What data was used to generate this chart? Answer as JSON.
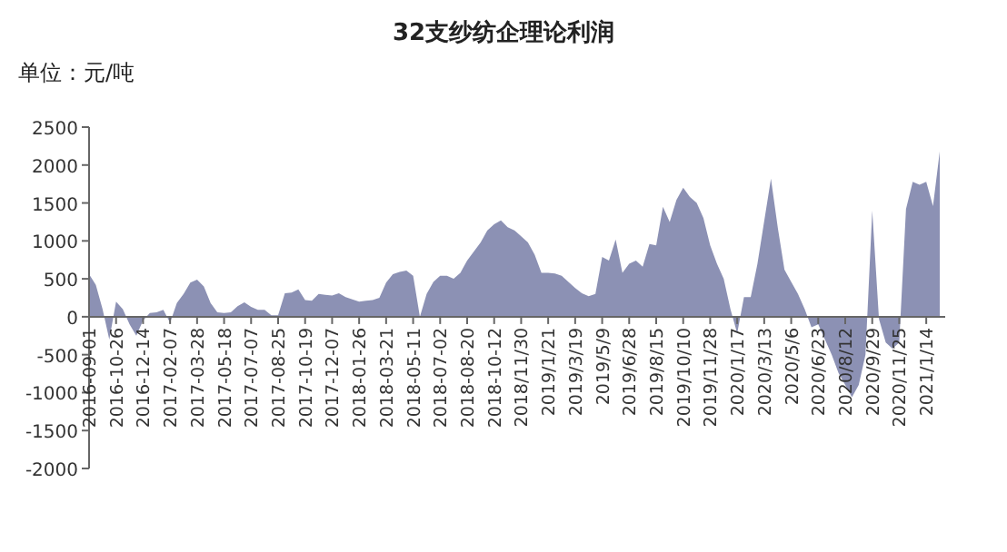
{
  "chart_data": {
    "type": "area",
    "title": "32支纱纺企理论利润",
    "annotations": [
      "单位：元/吨"
    ],
    "color": "#8c91b4",
    "categories": [
      "2016-09-01",
      null,
      null,
      null,
      "2016-10-26",
      null,
      null,
      null,
      "2016-12-14",
      null,
      null,
      null,
      "2017-02-07",
      null,
      null,
      null,
      "2017-03-28",
      null,
      null,
      null,
      "2017-05-18",
      null,
      null,
      null,
      "2017-07-07",
      null,
      null,
      null,
      "2017-08-25",
      null,
      null,
      null,
      "2017-10-19",
      null,
      null,
      null,
      "2017-12-07",
      null,
      null,
      null,
      "2018-01-26",
      null,
      null,
      null,
      "2018-03-21",
      null,
      null,
      null,
      "2018-05-11",
      null,
      null,
      null,
      "2018-07-02",
      null,
      null,
      null,
      "2018-08-20",
      null,
      null,
      null,
      "2018-10-12",
      null,
      null,
      null,
      "2018/11/30",
      null,
      null,
      null,
      "2019/1/21",
      null,
      null,
      null,
      "2019/3/19",
      null,
      null,
      null,
      "2019/5/9",
      null,
      null,
      null,
      "2019/6/28",
      null,
      null,
      null,
      "2019/8/15",
      null,
      null,
      null,
      "2019/10/10",
      null,
      null,
      null,
      "2019/11/28",
      null,
      null,
      null,
      "2020/1/17",
      null,
      null,
      null,
      "2020/3/13",
      null,
      null,
      null,
      "2020/5/6",
      null,
      null,
      null,
      "2020/6/23",
      null,
      null,
      null,
      "2020/8/12",
      null,
      null,
      null,
      "2020/9/29",
      null,
      null,
      null,
      "2020/11/25",
      null,
      null,
      null,
      "2021/1/14",
      null,
      null
    ],
    "values": [
      560,
      420,
      100,
      -300,
      200,
      100,
      -100,
      -250,
      -50,
      50,
      60,
      90,
      -80,
      180,
      300,
      450,
      490,
      400,
      180,
      60,
      50,
      60,
      140,
      190,
      130,
      90,
      90,
      20,
      20,
      310,
      320,
      360,
      220,
      210,
      300,
      290,
      280,
      310,
      260,
      230,
      200,
      210,
      220,
      250,
      450,
      560,
      590,
      610,
      540,
      0,
      300,
      460,
      540,
      540,
      500,
      580,
      740,
      860,
      980,
      1140,
      1220,
      1270,
      1180,
      1140,
      1060,
      980,
      820,
      580,
      580,
      570,
      540,
      460,
      380,
      310,
      270,
      300,
      790,
      740,
      1020,
      580,
      700,
      740,
      660,
      960,
      940,
      1450,
      1250,
      1540,
      1700,
      1580,
      1500,
      1300,
      940,
      700,
      500,
      100,
      -220,
      260,
      260,
      700,
      1260,
      1820,
      1180,
      620,
      460,
      300,
      100,
      -140,
      -100,
      -300,
      -500,
      -740,
      -900,
      -1060,
      -900,
      -500,
      1400,
      -30,
      -340,
      -420,
      -340,
      1420,
      1780,
      1740,
      1780,
      1460,
      2180
    ],
    "ylim": [
      -2000,
      2500
    ],
    "yticks": [
      -2000,
      -1500,
      -1000,
      -500,
      0,
      500,
      1000,
      1500,
      2000,
      2500
    ]
  }
}
